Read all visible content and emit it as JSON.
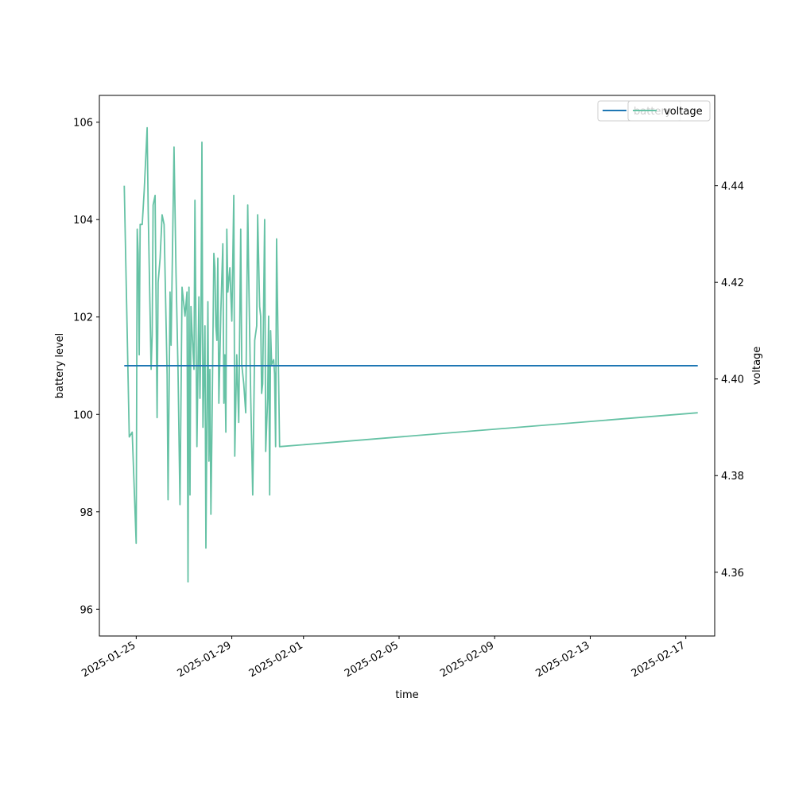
{
  "chart_data": {
    "type": "line",
    "xlabel": "time",
    "ylabel_left": "battery level",
    "ylabel_right": "voltage",
    "xlim": [
      "2025-01-23T11:00",
      "2025-02-18T05:00"
    ],
    "ylim_left": [
      95.45,
      106.55
    ],
    "ylim_right": [
      4.3468,
      4.4587
    ],
    "x_ticks": [
      "2025-01-25",
      "2025-01-29",
      "2025-02-01",
      "2025-02-05",
      "2025-02-09",
      "2025-02-13",
      "2025-02-17"
    ],
    "y_ticks_left": [
      96,
      98,
      100,
      102,
      104,
      106
    ],
    "y_ticks_right": [
      4.36,
      4.38,
      4.4,
      4.42,
      4.44
    ],
    "grid": false,
    "legends": [
      {
        "position": "top-right",
        "entries": [
          "battery"
        ]
      },
      {
        "position": "top-right",
        "entries": [
          "voltage"
        ]
      }
    ],
    "series": [
      {
        "name": "battery",
        "axis": "left",
        "color": "#1f77b4",
        "x": [
          "2025-01-24T12:00",
          "2025-02-17T12:00"
        ],
        "y": [
          101,
          101
        ]
      },
      {
        "name": "voltage",
        "axis": "right",
        "color": "#66c2a5",
        "x": [
          "2025-01-24T12:00",
          "2025-01-24T17:00",
          "2025-01-24T20:00",
          "2025-01-25T00:00",
          "2025-01-25T01:00",
          "2025-01-25T02:00",
          "2025-01-25T03:00",
          "2025-01-25T04:00",
          "2025-01-25T06:00",
          "2025-01-25T08:00",
          "2025-01-25T11:00",
          "2025-01-25T12:00",
          "2025-01-25T15:00",
          "2025-01-25T16:00",
          "2025-01-25T17:00",
          "2025-01-25T19:00",
          "2025-01-25T21:00",
          "2025-01-25T22:00",
          "2025-01-26T00:00",
          "2025-01-26T02:00",
          "2025-01-26T04:00",
          "2025-01-26T07:00",
          "2025-01-26T08:00",
          "2025-01-26T10:00",
          "2025-01-26T11:00",
          "2025-01-26T14:00",
          "2025-01-26T16:00",
          "2025-01-26T18:00",
          "2025-01-26T20:00",
          "2025-01-26T22:00",
          "2025-01-27T00:00",
          "2025-01-27T01:00",
          "2025-01-27T03:00",
          "2025-01-27T04:00",
          "2025-01-27T05:00",
          "2025-01-27T06:00",
          "2025-01-27T07:00",
          "2025-01-27T08:00",
          "2025-01-27T10:00",
          "2025-01-27T11:00",
          "2025-01-27T13:00",
          "2025-01-27T15:00",
          "2025-01-27T16:00",
          "2025-01-27T17:00",
          "2025-01-27T18:00",
          "2025-01-27T19:00",
          "2025-01-27T21:00",
          "2025-01-27T22:00",
          "2025-01-28T00:00",
          "2025-01-28T01:00",
          "2025-01-28T02:00",
          "2025-01-28T03:00",
          "2025-01-28T04:00",
          "2025-01-28T06:00",
          "2025-01-28T07:00",
          "2025-01-28T08:00",
          "2025-01-28T09:00",
          "2025-01-28T10:00",
          "2025-01-28T11:00",
          "2025-01-28T13:00",
          "2025-01-28T15:00",
          "2025-01-28T16:00",
          "2025-01-28T17:00",
          "2025-01-28T18:00",
          "2025-01-28T19:00",
          "2025-01-28T20:00",
          "2025-01-28T22:00",
          "2025-01-29T00:00",
          "2025-01-29T02:00",
          "2025-01-29T03:00",
          "2025-01-29T05:00",
          "2025-01-29T07:00",
          "2025-01-29T09:00",
          "2025-01-29T10:00",
          "2025-01-29T12:00",
          "2025-01-29T14:00",
          "2025-01-29T16:00",
          "2025-01-29T17:00",
          "2025-01-29T19:00",
          "2025-01-29T21:00",
          "2025-01-29T23:00",
          "2025-01-30T01:00",
          "2025-01-30T02:00",
          "2025-01-30T04:00",
          "2025-01-30T05:00",
          "2025-01-30T06:00",
          "2025-01-30T07:00",
          "2025-01-30T09:00",
          "2025-01-30T10:00",
          "2025-01-30T12:00",
          "2025-01-30T13:00",
          "2025-01-30T14:00",
          "2025-01-30T15:00",
          "2025-01-30T16:00",
          "2025-01-30T18:00",
          "2025-01-30T19:00",
          "2025-01-30T20:00",
          "2025-01-30T21:00",
          "2025-01-31T00:00",
          "2025-02-17T12:00"
        ],
        "y": [
          4.44,
          4.388,
          4.389,
          4.366,
          4.431,
          4.426,
          4.405,
          4.432,
          4.432,
          4.439,
          4.452,
          4.435,
          4.402,
          4.409,
          4.436,
          4.438,
          4.392,
          4.42,
          4.425,
          4.434,
          4.432,
          4.401,
          4.375,
          4.418,
          4.407,
          4.448,
          4.422,
          4.402,
          4.374,
          4.419,
          4.415,
          4.413,
          4.418,
          4.358,
          4.419,
          4.376,
          4.415,
          4.41,
          4.402,
          4.437,
          4.386,
          4.417,
          4.396,
          4.41,
          4.449,
          4.39,
          4.411,
          4.365,
          4.416,
          4.383,
          4.402,
          4.372,
          4.388,
          4.426,
          4.423,
          4.411,
          4.408,
          4.425,
          4.395,
          4.414,
          4.428,
          4.395,
          4.405,
          4.389,
          4.431,
          4.418,
          4.423,
          4.412,
          4.438,
          4.384,
          4.405,
          4.391,
          4.431,
          4.403,
          4.399,
          4.393,
          4.436,
          4.421,
          4.396,
          4.376,
          4.408,
          4.411,
          4.434,
          4.415,
          4.413,
          4.397,
          4.399,
          4.433,
          4.385,
          4.396,
          4.413,
          4.376,
          4.41,
          4.403,
          4.404,
          4.401,
          4.386,
          4.429,
          4.386,
          4.393
        ]
      }
    ]
  }
}
